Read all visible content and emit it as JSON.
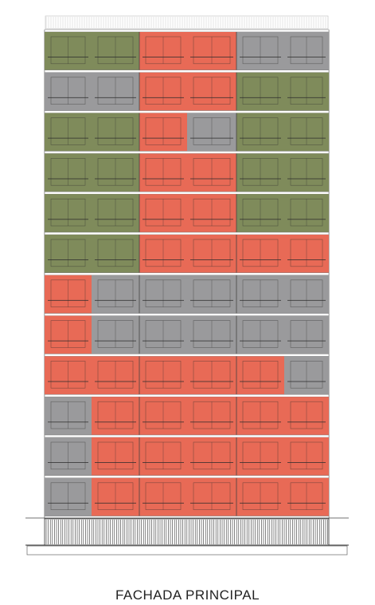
{
  "title": "FACHADA PRINCIPAL",
  "colors": {
    "green": "#7f8b5b",
    "red": "#e86a56",
    "gray": "#9a9a9c",
    "line": "#2b2b2b",
    "slab": "#ffffff"
  },
  "floors": [
    [
      "green",
      "green",
      "red",
      "red",
      "gray",
      "gray"
    ],
    [
      "gray",
      "gray",
      "red",
      "red",
      "green",
      "green"
    ],
    [
      "green",
      "green",
      "red",
      "gray",
      "green",
      "green"
    ],
    [
      "green",
      "green",
      "red",
      "red",
      "green",
      "green"
    ],
    [
      "green",
      "green",
      "red",
      "red",
      "green",
      "green"
    ],
    [
      "green",
      "green",
      "red",
      "red",
      "red",
      "red"
    ],
    [
      "red",
      "gray",
      "gray",
      "gray",
      "gray",
      "gray"
    ],
    [
      "red",
      "gray",
      "gray",
      "gray",
      "gray",
      "gray"
    ],
    [
      "red",
      "red",
      "red",
      "red",
      "red",
      "gray"
    ],
    [
      "gray",
      "red",
      "red",
      "red",
      "red",
      "red"
    ],
    [
      "gray",
      "red",
      "red",
      "red",
      "red",
      "red"
    ],
    [
      "gray",
      "red",
      "red",
      "red",
      "red",
      "red"
    ]
  ]
}
